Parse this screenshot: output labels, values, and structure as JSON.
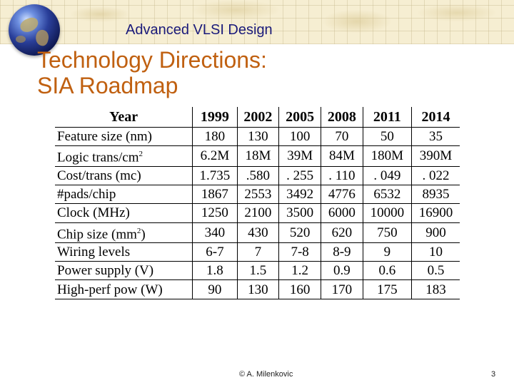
{
  "header": {
    "course_title": "Advanced VLSI Design"
  },
  "slide": {
    "title_line1": "Technology Directions:",
    "title_line2": "SIA Roadmap"
  },
  "table": {
    "corner_label": "Year",
    "years": [
      "1999",
      "2002",
      "2005",
      "2008",
      "2011",
      "2014"
    ],
    "rows": [
      {
        "label": "Feature size (nm)",
        "label_sup": "",
        "label_after": "",
        "values": [
          "180",
          "130",
          "100",
          "70",
          "50",
          "35"
        ]
      },
      {
        "label": "Logic trans/cm",
        "label_sup": "2",
        "label_after": "",
        "values": [
          "6.2M",
          "18M",
          "39M",
          "84M",
          "180M",
          "390M"
        ]
      },
      {
        "label": "Cost/trans (mc)",
        "label_sup": "",
        "label_after": "",
        "values": [
          "1.735",
          ".580",
          ". 255",
          ". 110",
          ". 049",
          ". 022"
        ]
      },
      {
        "label": "#pads/chip",
        "label_sup": "",
        "label_after": "",
        "values": [
          "1867",
          "2553",
          "3492",
          "4776",
          "6532",
          "8935"
        ]
      },
      {
        "label": "Clock (MHz)",
        "label_sup": "",
        "label_after": "",
        "values": [
          "1250",
          "2100",
          "3500",
          "6000",
          "10000",
          "16900"
        ]
      },
      {
        "label": "Chip size (mm",
        "label_sup": "2",
        "label_after": ")",
        "values": [
          "340",
          "430",
          "520",
          "620",
          "750",
          "900"
        ]
      },
      {
        "label": "Wiring levels",
        "label_sup": "",
        "label_after": "",
        "values": [
          "6-7",
          "7",
          "7-8",
          "8-9",
          "9",
          "10"
        ]
      },
      {
        "label": "Power supply (V)",
        "label_sup": "",
        "label_after": "",
        "values": [
          "1.8",
          "1.5",
          "1.2",
          "0.9",
          "0.6",
          "0.5"
        ]
      },
      {
        "label": "High-perf pow (W)",
        "label_sup": "",
        "label_after": "",
        "values": [
          "90",
          "130",
          "160",
          "170",
          "175",
          "183"
        ]
      }
    ]
  },
  "footer": {
    "author": "© A. Milenkovic",
    "page_number": "3"
  }
}
